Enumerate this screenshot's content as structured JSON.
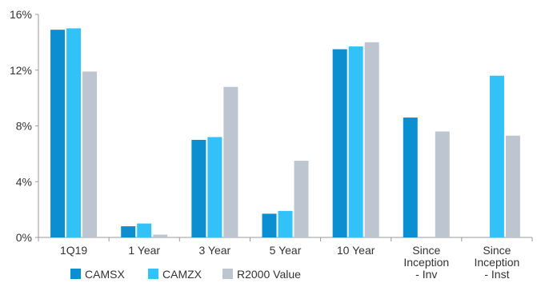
{
  "chart_data": {
    "type": "bar",
    "categories": [
      [
        "1Q19"
      ],
      [
        "1 Year"
      ],
      [
        "3 Year"
      ],
      [
        "5 Year"
      ],
      [
        "10 Year"
      ],
      [
        "Since",
        "Inception",
        "- Inv"
      ],
      [
        "Since",
        "Inception",
        "- Inst"
      ]
    ],
    "series": [
      {
        "name": "CAMSX",
        "color": "#0b8fd1",
        "values": [
          14.9,
          0.8,
          7.0,
          1.7,
          13.5,
          8.6,
          null
        ]
      },
      {
        "name": "CAMZX",
        "color": "#33c2f7",
        "values": [
          15.0,
          1.0,
          7.2,
          1.9,
          13.7,
          null,
          11.6
        ]
      },
      {
        "name": "R2000 Value",
        "color": "#bdc6d0",
        "values": [
          11.9,
          0.2,
          10.8,
          5.5,
          14.0,
          7.6,
          7.3
        ]
      }
    ],
    "ylim": [
      0,
      16
    ],
    "yticks": [
      0,
      4,
      8,
      12,
      16
    ],
    "ytick_labels": [
      "0%",
      "4%",
      "8%",
      "12%",
      "16%"
    ],
    "grid": false,
    "legend_position": "bottom-left",
    "title": "",
    "xlabel": "",
    "ylabel": ""
  }
}
